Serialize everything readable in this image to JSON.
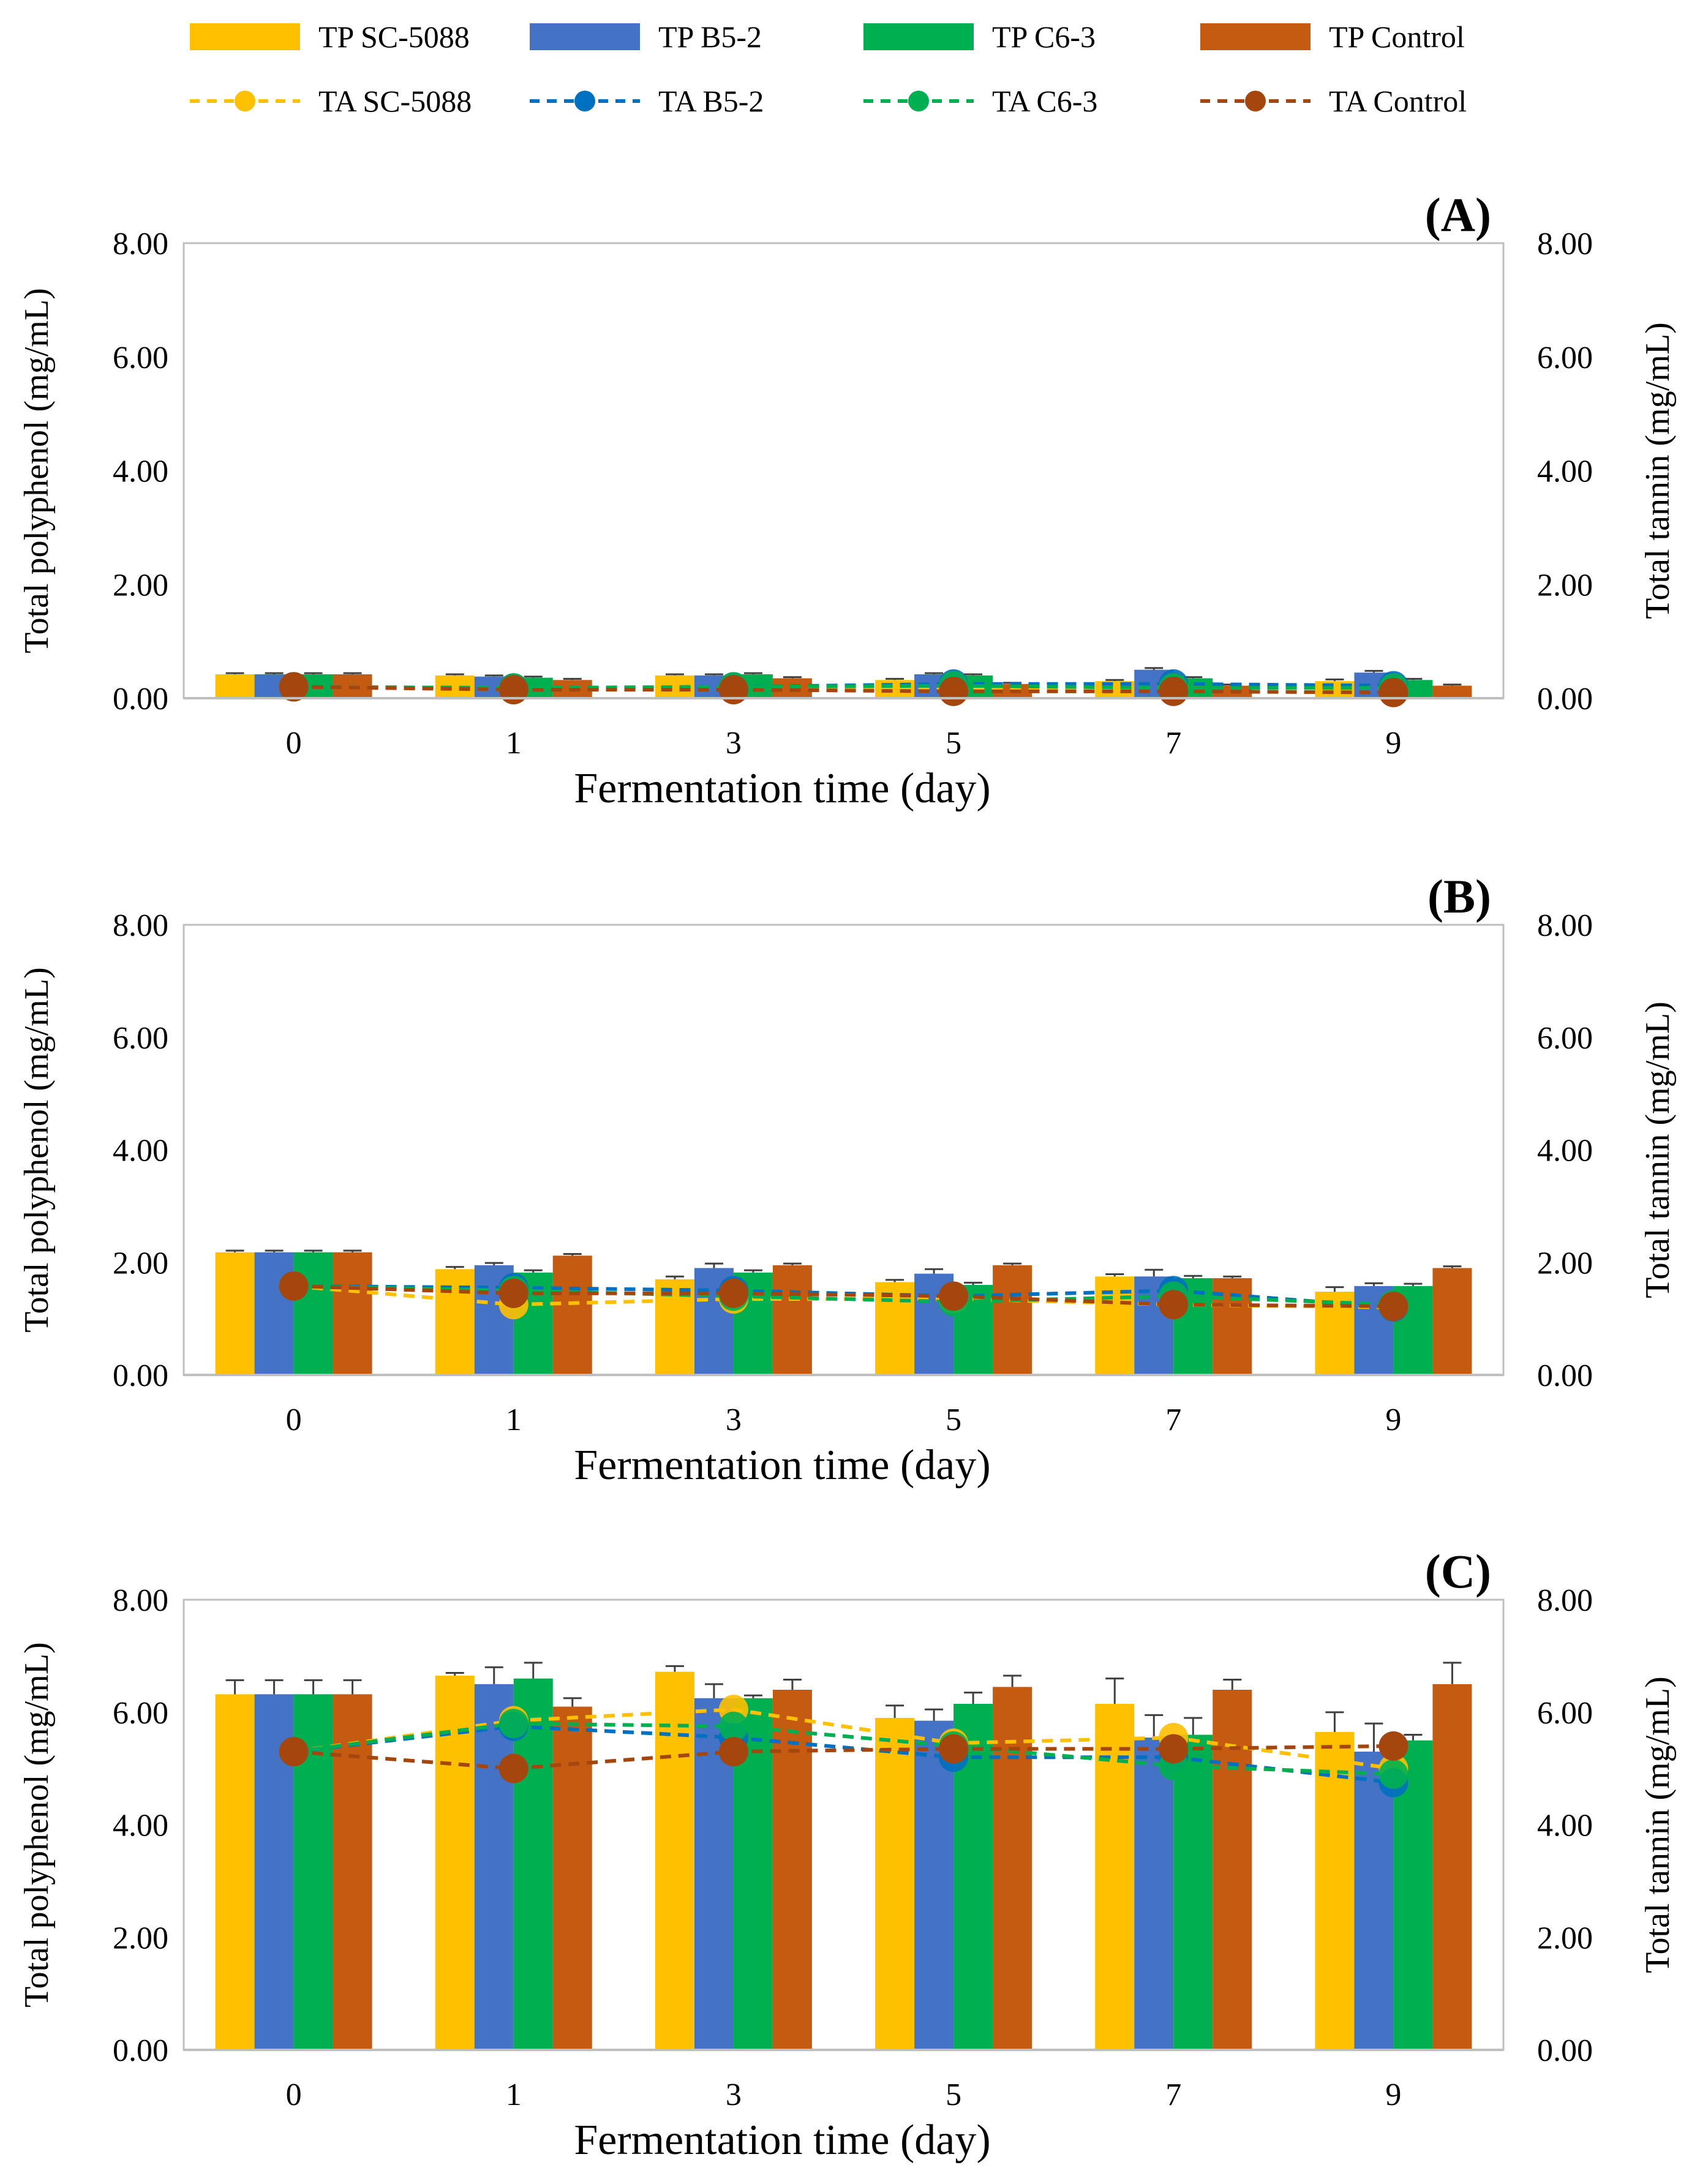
{
  "legend": {
    "items": [
      {
        "label": "TP SC-5088",
        "kind": "bar",
        "series": 0
      },
      {
        "label": "TP B5-2",
        "kind": "bar",
        "series": 1
      },
      {
        "label": "TP C6-3",
        "kind": "bar",
        "series": 2
      },
      {
        "label": "TP Control",
        "kind": "bar",
        "series": 3
      },
      {
        "label": "TA SC-5088",
        "kind": "line",
        "series": 0
      },
      {
        "label": "TA B5-2",
        "kind": "line",
        "series": 1
      },
      {
        "label": "TA C6-3",
        "kind": "line",
        "series": 2
      },
      {
        "label": "TA Control",
        "kind": "line",
        "series": 3
      }
    ]
  },
  "colors": {
    "bar": [
      "#FFC000",
      "#4472C4",
      "#00B050",
      "#C55A11"
    ],
    "line": [
      "#FFC000",
      "#0070C0",
      "#00B050",
      "#A5460F"
    ],
    "axis": "#BFBFBF",
    "error": "#404040"
  },
  "chart_data": [
    {
      "type": "bar",
      "panel_label": "(A)",
      "categories": [
        "0",
        "1",
        "3",
        "5",
        "7",
        "9"
      ],
      "xlabel": "Fermentation time (day)",
      "ylabel": "Total polyphenol (mg/mL)",
      "y2label": "Total tannin (mg/mL)",
      "ylim": [
        0,
        8
      ],
      "y2lim": [
        0,
        8
      ],
      "yticks": [
        "0.00",
        "2.00",
        "4.00",
        "6.00",
        "8.00"
      ],
      "y2ticks": [
        "0.00",
        "2.00",
        "4.00",
        "6.00",
        "8.00"
      ],
      "series": [
        {
          "name": "TP SC-5088",
          "values": [
            0.42,
            0.4,
            0.4,
            0.32,
            0.3,
            0.3
          ],
          "errors": [
            0.02,
            0.02,
            0.02,
            0.02,
            0.02,
            0.03
          ]
        },
        {
          "name": "TP B5-2",
          "values": [
            0.42,
            0.38,
            0.4,
            0.42,
            0.5,
            0.45
          ],
          "errors": [
            0.02,
            0.02,
            0.02,
            0.02,
            0.03,
            0.03
          ]
        },
        {
          "name": "TP C6-3",
          "values": [
            0.42,
            0.36,
            0.42,
            0.4,
            0.35,
            0.32
          ],
          "errors": [
            0.02,
            0.02,
            0.02,
            0.02,
            0.02,
            0.02
          ]
        },
        {
          "name": "TP Control",
          "values": [
            0.42,
            0.32,
            0.35,
            0.25,
            0.22,
            0.22
          ],
          "errors": [
            0.02,
            0.02,
            0.02,
            0.02,
            0.02,
            0.02
          ]
        }
      ],
      "line_series": [
        {
          "name": "TA SC-5088",
          "values": [
            0.2,
            0.15,
            0.18,
            0.15,
            0.2,
            0.18
          ]
        },
        {
          "name": "TA B5-2",
          "values": [
            0.2,
            0.18,
            0.2,
            0.25,
            0.25,
            0.22
          ]
        },
        {
          "name": "TA C6-3",
          "values": [
            0.2,
            0.18,
            0.2,
            0.22,
            0.18,
            0.18
          ]
        },
        {
          "name": "TA Control",
          "values": [
            0.2,
            0.15,
            0.15,
            0.12,
            0.12,
            0.1
          ]
        }
      ]
    },
    {
      "type": "bar",
      "panel_label": "(B)",
      "categories": [
        "0",
        "1",
        "3",
        "5",
        "7",
        "9"
      ],
      "xlabel": "Fermentation time (day)",
      "ylabel": "Total polyphenol (mg/mL)",
      "y2label": "Total tannin (mg/mL)",
      "ylim": [
        0,
        8
      ],
      "y2lim": [
        0,
        8
      ],
      "yticks": [
        "0.00",
        "2.00",
        "4.00",
        "6.00",
        "8.00"
      ],
      "y2ticks": [
        "0.00",
        "2.00",
        "4.00",
        "6.00",
        "8.00"
      ],
      "series": [
        {
          "name": "TP SC-5088",
          "values": [
            2.18,
            1.88,
            1.7,
            1.65,
            1.75,
            1.48
          ],
          "errors": [
            0.03,
            0.04,
            0.05,
            0.04,
            0.04,
            0.08
          ]
        },
        {
          "name": "TP B5-2",
          "values": [
            2.18,
            1.95,
            1.9,
            1.8,
            1.75,
            1.58
          ],
          "errors": [
            0.03,
            0.04,
            0.08,
            0.08,
            0.12,
            0.05
          ]
        },
        {
          "name": "TP C6-3",
          "values": [
            2.18,
            1.82,
            1.82,
            1.6,
            1.72,
            1.58
          ],
          "errors": [
            0.03,
            0.04,
            0.04,
            0.04,
            0.04,
            0.04
          ]
        },
        {
          "name": "TP Control",
          "values": [
            2.18,
            2.12,
            1.95,
            1.95,
            1.72,
            1.9
          ],
          "errors": [
            0.03,
            0.03,
            0.03,
            0.03,
            0.03,
            0.03
          ]
        }
      ],
      "line_series": [
        {
          "name": "TA SC-5088",
          "values": [
            1.58,
            1.25,
            1.35,
            1.35,
            1.25,
            1.2
          ]
        },
        {
          "name": "TA B5-2",
          "values": [
            1.58,
            1.55,
            1.5,
            1.4,
            1.5,
            1.2
          ]
        },
        {
          "name": "TA C6-3",
          "values": [
            1.58,
            1.5,
            1.4,
            1.3,
            1.4,
            1.25
          ]
        },
        {
          "name": "TA Control",
          "values": [
            1.58,
            1.45,
            1.45,
            1.4,
            1.25,
            1.22
          ]
        }
      ]
    },
    {
      "type": "bar",
      "panel_label": "(C)",
      "categories": [
        "0",
        "1",
        "3",
        "5",
        "7",
        "9"
      ],
      "xlabel": "Fermentation time (day)",
      "ylabel": "Total polyphenol (mg/mL)",
      "y2label": "Total tannin (mg/mL)",
      "ylim": [
        0,
        8
      ],
      "y2lim": [
        0,
        8
      ],
      "yticks": [
        "0.00",
        "2.00",
        "4.00",
        "6.00",
        "8.00"
      ],
      "y2ticks": [
        "0.00",
        "2.00",
        "4.00",
        "6.00",
        "8.00"
      ],
      "series": [
        {
          "name": "TP SC-5088",
          "values": [
            6.32,
            6.65,
            6.72,
            5.9,
            6.15,
            5.65
          ],
          "errors": [
            0.25,
            0.05,
            0.1,
            0.22,
            0.45,
            0.35
          ]
        },
        {
          "name": "TP B5-2",
          "values": [
            6.32,
            6.5,
            6.25,
            5.85,
            5.55,
            5.3
          ],
          "errors": [
            0.25,
            0.3,
            0.25,
            0.2,
            0.4,
            0.5
          ]
        },
        {
          "name": "TP C6-3",
          "values": [
            6.32,
            6.6,
            6.25,
            6.15,
            5.6,
            5.5
          ],
          "errors": [
            0.25,
            0.28,
            0.05,
            0.2,
            0.3,
            0.1
          ]
        },
        {
          "name": "TP Control",
          "values": [
            6.32,
            6.1,
            6.4,
            6.45,
            6.4,
            6.5
          ],
          "errors": [
            0.25,
            0.15,
            0.18,
            0.2,
            0.18,
            0.38
          ]
        }
      ],
      "line_series": [
        {
          "name": "TA SC-5088",
          "values": [
            5.3,
            5.85,
            6.05,
            5.45,
            5.55,
            5.0
          ]
        },
        {
          "name": "TA B5-2",
          "values": [
            5.3,
            5.75,
            5.55,
            5.2,
            5.2,
            4.75
          ]
        },
        {
          "name": "TA C6-3",
          "values": [
            5.3,
            5.8,
            5.75,
            5.4,
            5.05,
            4.9
          ]
        },
        {
          "name": "TA Control",
          "values": [
            5.3,
            5.0,
            5.3,
            5.35,
            5.35,
            5.4
          ]
        }
      ]
    }
  ]
}
